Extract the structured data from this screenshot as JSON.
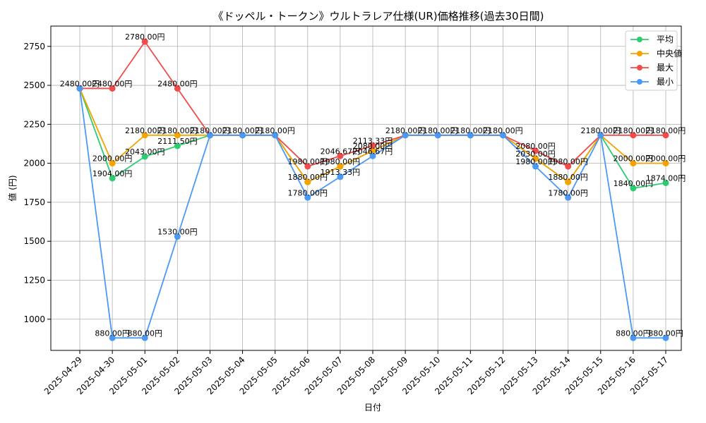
{
  "chart_data": {
    "type": "line",
    "title": "《ドッペル・トークン》ウルトラレア仕様(UR)価格推移(過去30日間)",
    "xlabel": "日付",
    "ylabel": "値 (円)",
    "x": [
      "2025-04-29",
      "2025-04-30",
      "2025-05-01",
      "2025-05-02",
      "2025-05-03",
      "2025-05-04",
      "2025-05-05",
      "2025-05-06",
      "2025-05-07",
      "2025-05-08",
      "2025-05-09",
      "2025-05-10",
      "2025-05-11",
      "2025-05-12",
      "2025-05-13",
      "2025-05-14",
      "2025-05-15",
      "2025-05-16",
      "2025-05-17"
    ],
    "ylim": [
      800,
      2880
    ],
    "yticks": [
      1000,
      1250,
      1500,
      1750,
      2000,
      2250,
      2500,
      2750
    ],
    "grid": true,
    "legend_position": "top-right",
    "series": [
      {
        "name": "平均",
        "color": "#2ecc71",
        "values": [
          2480,
          1904,
          2043,
          2111.5,
          2180,
          2180,
          2180,
          1880,
          1980,
          2080,
          2180,
          2180,
          2180,
          2180,
          2030,
          1880,
          2180,
          1840,
          1874
        ]
      },
      {
        "name": "中央値",
        "color": "#f5a300",
        "values": [
          2480,
          2000,
          2180,
          2180,
          2180,
          2180,
          2180,
          1880,
          1980,
          2080,
          2180,
          2180,
          2180,
          2180,
          2030,
          1880,
          2180,
          2000,
          2000
        ]
      },
      {
        "name": "最大",
        "color": "#f24b4b",
        "values": [
          2480,
          2480,
          2780,
          2480,
          2180,
          2180,
          2180,
          1980,
          2046.67,
          2113.33,
          2180,
          2180,
          2180,
          2180,
          2080,
          1980,
          2180,
          2180,
          2180
        ]
      },
      {
        "name": "最小",
        "color": "#4a9af5",
        "values": [
          2480,
          880,
          880,
          1530,
          2180,
          2180,
          2180,
          1780,
          1913.33,
          2046.67,
          2180,
          2180,
          2180,
          2180,
          1980,
          1780,
          2180,
          880,
          880
        ]
      }
    ],
    "labels": [
      {
        "xi": 0,
        "y": 2480,
        "text": "2480.00円"
      },
      {
        "xi": 1,
        "y": 2480,
        "text": "2480.00円"
      },
      {
        "xi": 1,
        "y": 2000,
        "text": "2000.00円"
      },
      {
        "xi": 1,
        "y": 1904,
        "text": "1904.00円"
      },
      {
        "xi": 1,
        "y": 880,
        "text": "880.00円"
      },
      {
        "xi": 2,
        "y": 2780,
        "text": "2780.00円"
      },
      {
        "xi": 2,
        "y": 2180,
        "text": "2180.00円"
      },
      {
        "xi": 2,
        "y": 2043,
        "text": "2043.00円"
      },
      {
        "xi": 2,
        "y": 880,
        "text": "880.00円"
      },
      {
        "xi": 3,
        "y": 2480,
        "text": "2480.00円"
      },
      {
        "xi": 3,
        "y": 2180,
        "text": "2180.00円"
      },
      {
        "xi": 3,
        "y": 2111.5,
        "text": "2111.50円"
      },
      {
        "xi": 3,
        "y": 1530,
        "text": "1530.00円"
      },
      {
        "xi": 4,
        "y": 2180,
        "text": "2180.00円"
      },
      {
        "xi": 5,
        "y": 2180,
        "text": "2180.00円"
      },
      {
        "xi": 6,
        "y": 2180,
        "text": "2180.00円"
      },
      {
        "xi": 7,
        "y": 1980,
        "text": "1980.00円"
      },
      {
        "xi": 7,
        "y": 1880,
        "text": "1880.00円"
      },
      {
        "xi": 7,
        "y": 1780,
        "text": "1780.00円"
      },
      {
        "xi": 8,
        "y": 2046.67,
        "text": "2046.67円"
      },
      {
        "xi": 8,
        "y": 1980,
        "text": "1980.00円"
      },
      {
        "xi": 8,
        "y": 1913.33,
        "text": "1913.33円"
      },
      {
        "xi": 9,
        "y": 2113.33,
        "text": "2113.33円"
      },
      {
        "xi": 9,
        "y": 2080,
        "text": "2080.00円"
      },
      {
        "xi": 9,
        "y": 2046.67,
        "text": "2046.67円"
      },
      {
        "xi": 10,
        "y": 2180,
        "text": "2180.00円"
      },
      {
        "xi": 11,
        "y": 2180,
        "text": "2180.00円"
      },
      {
        "xi": 12,
        "y": 2180,
        "text": "2180.00円"
      },
      {
        "xi": 13,
        "y": 2180,
        "text": "2180.00円"
      },
      {
        "xi": 14,
        "y": 2080,
        "text": "2080.00円"
      },
      {
        "xi": 14,
        "y": 2030,
        "text": "2030.00円"
      },
      {
        "xi": 14,
        "y": 1980,
        "text": "1980.00円"
      },
      {
        "xi": 15,
        "y": 1980,
        "text": "1980.00円"
      },
      {
        "xi": 15,
        "y": 1880,
        "text": "1880.00円"
      },
      {
        "xi": 15,
        "y": 1780,
        "text": "1780.00円"
      },
      {
        "xi": 16,
        "y": 2180,
        "text": "2180.00円"
      },
      {
        "xi": 17,
        "y": 2180,
        "text": "2180.00円"
      },
      {
        "xi": 17,
        "y": 2000,
        "text": "2000.00円"
      },
      {
        "xi": 17,
        "y": 1840,
        "text": "1840.00円"
      },
      {
        "xi": 17,
        "y": 880,
        "text": "880.00円"
      },
      {
        "xi": 18,
        "y": 2180,
        "text": "2180.00円"
      },
      {
        "xi": 18,
        "y": 2000,
        "text": "2000.00円"
      },
      {
        "xi": 18,
        "y": 1874,
        "text": "1874.00円"
      },
      {
        "xi": 18,
        "y": 880,
        "text": "880.00円"
      }
    ]
  }
}
